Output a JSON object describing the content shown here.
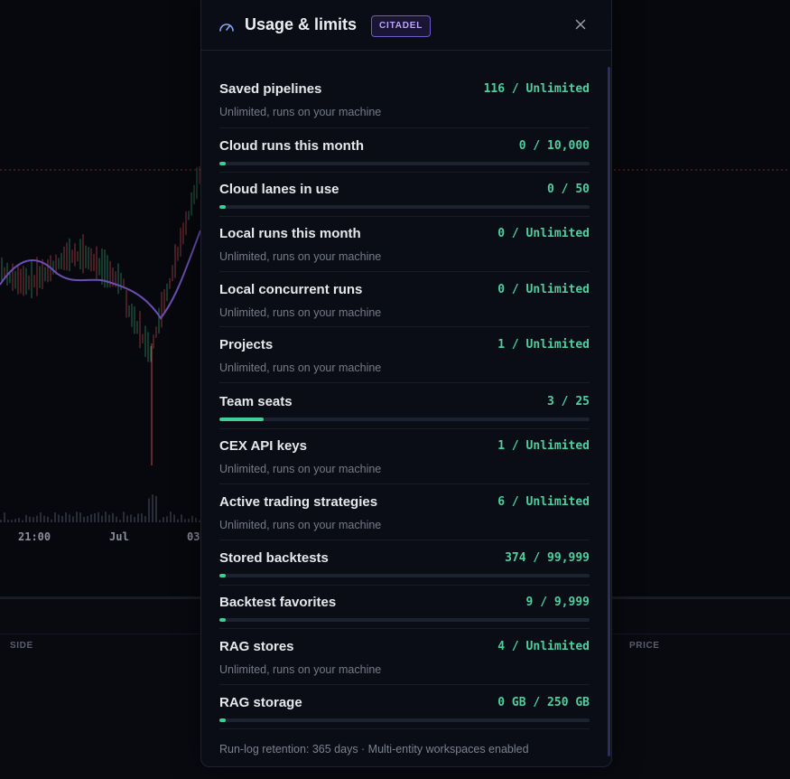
{
  "background": {
    "time_labels": [
      "21:00",
      "Jul",
      "03"
    ],
    "table_headers": [
      "SIDE",
      "PRICE"
    ]
  },
  "modal": {
    "icon": "gauge-icon",
    "title": "Usage & limits",
    "plan_badge": "CITADEL",
    "close_icon": "close-icon",
    "items": [
      {
        "label": "Saved pipelines",
        "value": "116 / Unlimited",
        "type": "text",
        "sub": "Unlimited, runs on your machine"
      },
      {
        "label": "Cloud runs this month",
        "value": "0 / 10,000",
        "type": "bar",
        "fill": 0.0
      },
      {
        "label": "Cloud lanes in use",
        "value": "0 / 50",
        "type": "bar",
        "fill": 0.0
      },
      {
        "label": "Local runs this month",
        "value": "0 / Unlimited",
        "type": "text",
        "sub": "Unlimited, runs on your machine"
      },
      {
        "label": "Local concurrent runs",
        "value": "0 / Unlimited",
        "type": "text",
        "sub": "Unlimited, runs on your machine"
      },
      {
        "label": "Projects",
        "value": "1 / Unlimited",
        "type": "text",
        "sub": "Unlimited, runs on your machine"
      },
      {
        "label": "Team seats",
        "value": "3 / 25",
        "type": "bar",
        "fill": 0.12
      },
      {
        "label": "CEX API keys",
        "value": "1 / Unlimited",
        "type": "text",
        "sub": "Unlimited, runs on your machine"
      },
      {
        "label": "Active trading strategies",
        "value": "6 / Unlimited",
        "type": "text",
        "sub": "Unlimited, runs on your machine"
      },
      {
        "label": "Stored backtests",
        "value": "374 / 99,999",
        "type": "bar",
        "fill": 0.0037
      },
      {
        "label": "Backtest favorites",
        "value": "9 / 9,999",
        "type": "bar",
        "fill": 0.0009
      },
      {
        "label": "RAG stores",
        "value": "4 / Unlimited",
        "type": "text",
        "sub": "Unlimited, runs on your machine"
      },
      {
        "label": "RAG storage",
        "value": "0 GB / 250 GB",
        "type": "bar",
        "fill": 0.0
      }
    ],
    "footer": "Run-log retention: 365 days · Multi-entity workspaces enabled"
  },
  "colors": {
    "accent_green": "#4ecf9f",
    "badge_purple": "#b8a6ff",
    "candle_up": "#2e9e6e",
    "candle_down": "#c0474a",
    "ma_line": "#6b4fb0"
  }
}
